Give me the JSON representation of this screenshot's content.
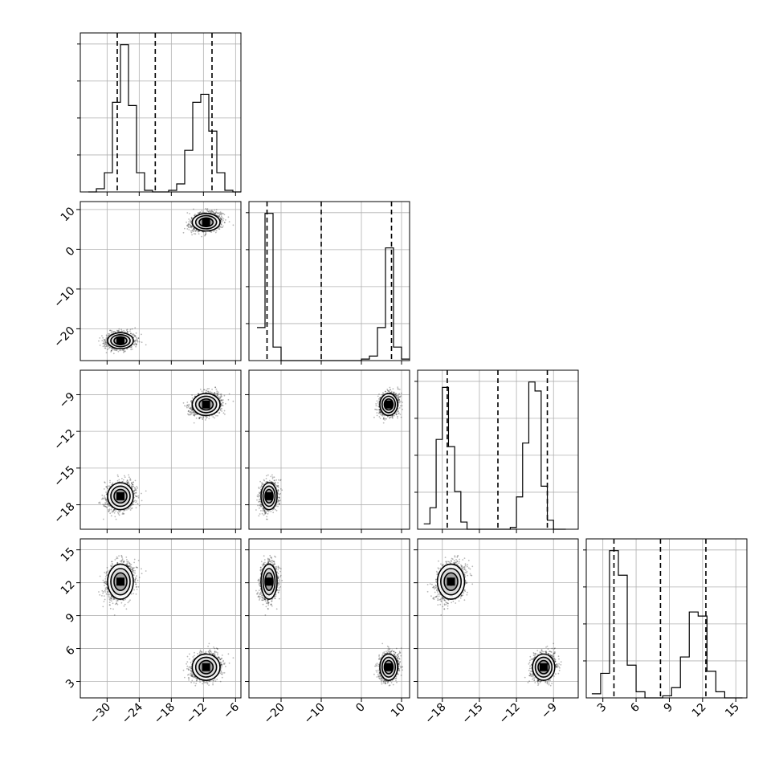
{
  "chart_data": {
    "type": "corner",
    "title": "",
    "parameters": [
      "",
      "",
      "",
      ""
    ],
    "ranges": [
      [
        -35,
        -5
      ],
      [
        -28,
        12
      ],
      [
        -20,
        -7
      ],
      [
        1.5,
        16
      ]
    ],
    "ticks": [
      [
        -30,
        -24,
        -18,
        -12,
        -6
      ],
      [
        -20,
        -10,
        0,
        10
      ],
      [
        -18,
        -15,
        -12,
        -9
      ],
      [
        3,
        6,
        9,
        12,
        15
      ]
    ],
    "tick_labels": [
      [
        "−30",
        "−24",
        "−18",
        "−12",
        "−6"
      ],
      [
        "−20",
        "−10",
        "0",
        "10"
      ],
      [
        "−18",
        "−15",
        "−12",
        "−9"
      ],
      [
        "3",
        "6",
        "9",
        "12",
        "15"
      ]
    ],
    "quantiles": [
      [
        -28.1,
        -21.0,
        -10.4
      ],
      [
        -23.5,
        -10.0,
        7.5
      ],
      [
        -17.6,
        -13.5,
        -9.5
      ],
      [
        4.0,
        8.2,
        12.3
      ]
    ],
    "modes": [
      {
        "mean": [
          -27.5,
          -23.0,
          -17.3,
          12.1
        ],
        "sd": [
          1.2,
          1.0,
          0.55,
          0.8
        ]
      },
      {
        "mean": [
          -11.5,
          6.8,
          -9.8,
          4.3
        ],
        "sd": [
          1.3,
          1.1,
          0.45,
          0.6
        ]
      }
    ],
    "histograms": [
      {
        "edges": [
          -33.5,
          -32,
          -30.5,
          -29,
          -27.5,
          -26,
          -24.5,
          -23,
          -21.5,
          -20,
          -18.5,
          -17,
          -15.5,
          -14,
          -12.5,
          -11,
          -9.5,
          -8,
          -6.5,
          -5
        ],
        "counts": [
          0,
          2,
          12,
          56,
          92,
          54,
          12,
          1,
          0,
          0,
          1,
          5,
          26,
          56,
          61,
          38,
          12,
          1,
          0
        ]
      },
      {
        "edges": [
          -26,
          -24,
          -22,
          -20,
          -18,
          -16,
          -14,
          -12,
          -10,
          -8,
          -6,
          -4,
          -2,
          0,
          2,
          4,
          6,
          8,
          10,
          12
        ],
        "counts": [
          22,
          98,
          9,
          0,
          0,
          0,
          0,
          0,
          0,
          0,
          0,
          0,
          0,
          1,
          3,
          22,
          75,
          9,
          1
        ]
      },
      {
        "edges": [
          -19.5,
          -19,
          -18.5,
          -18,
          -17.5,
          -17,
          -16.5,
          -16,
          -15.5,
          -15,
          -14.5,
          -14,
          -13.5,
          -13,
          -12.5,
          -12,
          -11.5,
          -11,
          -10.5,
          -10,
          -9.5,
          -9,
          -8.5,
          -8
        ],
        "counts": [
          3,
          12,
          50,
          79,
          46,
          21,
          4,
          0,
          0,
          0,
          0,
          0,
          0,
          0,
          1,
          18,
          48,
          82,
          77,
          24,
          5,
          0,
          0
        ]
      },
      {
        "edges": [
          2,
          2.8,
          3.6,
          4.4,
          5.2,
          6,
          6.8,
          7.6,
          8.4,
          9.2,
          10,
          10.8,
          11.6,
          12.4,
          13.2,
          14,
          14.8,
          15.6
        ],
        "counts": [
          2,
          12,
          72,
          60,
          16,
          3,
          0,
          0,
          1,
          5,
          20,
          42,
          40,
          13,
          3,
          0,
          0
        ]
      }
    ],
    "grid": true,
    "colors": {
      "points": "#000000",
      "lines": "#000000",
      "grid": "#b0b0b0"
    }
  }
}
